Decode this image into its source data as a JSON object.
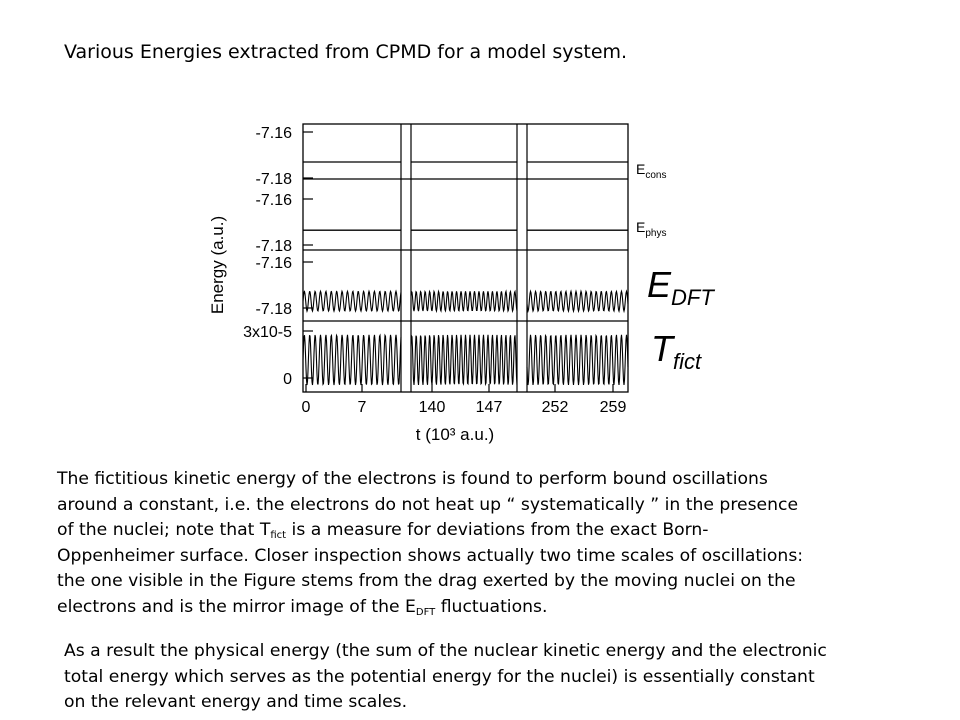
{
  "title": "Various Energies extracted from CPMD for a model system.",
  "chart_data": {
    "type": "line",
    "ylabel": "Energy (a.u.)",
    "xlabel": "t (10³ a.u.)",
    "x_tick_labels": [
      "0",
      "7",
      "140",
      "147",
      "252",
      "259"
    ],
    "x_segments": [
      [
        0,
        10
      ],
      [
        137,
        150
      ],
      [
        250,
        261
      ]
    ],
    "panels": [
      {
        "name": "E_cons",
        "label_main": "E",
        "label_sub": "cons",
        "tick_labels": [
          "-7.16",
          "-7.18"
        ],
        "ylim": [
          -7.185,
          -7.155
        ],
        "description_series": "flat",
        "value": -7.175
      },
      {
        "name": "E_phys",
        "label_main": "E",
        "label_sub": "phys",
        "tick_labels": [
          "-7.16",
          "-7.18"
        ],
        "ylim": [
          -7.185,
          -7.155
        ],
        "description_series": "flat",
        "value": -7.176
      },
      {
        "name": "E_DFT",
        "label_main": "E",
        "label_sub": "DFT",
        "tick_labels": [
          "-7.16",
          "-7.18"
        ],
        "ylim": [
          -7.185,
          -7.155
        ],
        "description_series": "oscillating",
        "center": -7.176,
        "amplitude": 0.0045,
        "period_1e3au": 0.55
      },
      {
        "name": "T_fict",
        "label_main": "T",
        "label_sub": "fict",
        "tick_labels": [
          "3x10-5",
          "0"
        ],
        "ylim": [
          0,
          3e-05
        ],
        "description_series": "oscillating",
        "center": 1.35e-05,
        "amplitude": 1.3e-05,
        "period_1e3au": 0.55
      }
    ],
    "grid": false
  },
  "para1": {
    "l1": "The fictitious kinetic energy of the electrons is found to perform bound oscillations",
    "l2": "around a constant, i.e. the electrons do not heat up “ systematically ” in the presence",
    "l3a": "of the nuclei; note that T",
    "l3sub": "fict",
    "l3b": " is a measure for deviations from the exact Born-",
    "l4": "Oppenheimer surface. Closer inspection shows actually two time scales of oscillations:",
    "l5": "the one visible in the Figure stems from the drag exerted by the moving nuclei on the",
    "l6a": "electrons and is the mirror image of the E",
    "l6sub": "DFT",
    "l6b": " fluctuations."
  },
  "para2": {
    "l1": "As a result the physical energy (the sum of the nuclear kinetic energy and the electronic",
    "l2": "total energy which serves as the potential energy for the nuclei) is essentially constant",
    "l3": "on the relevant energy and time scales."
  }
}
